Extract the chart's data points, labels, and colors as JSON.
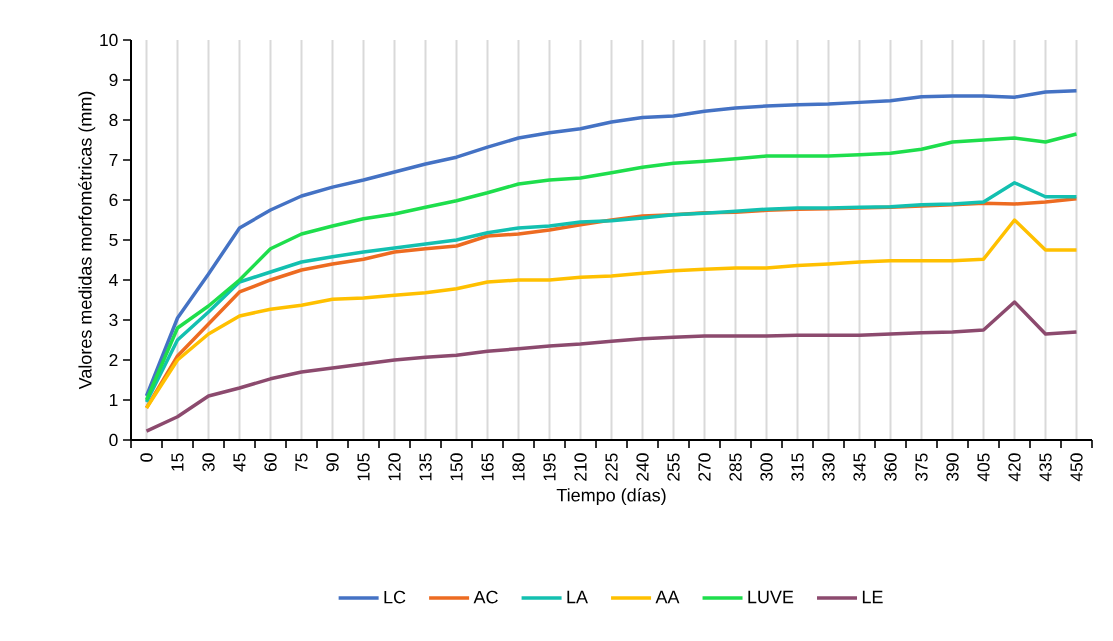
{
  "chart_data": {
    "type": "line",
    "xlabel": "Tiempo (días)",
    "ylabel": "Valores medidas morfométricas (mm)",
    "categories": [
      "0",
      "15",
      "30",
      "45",
      "60",
      "75",
      "90",
      "105",
      "120",
      "135",
      "150",
      "165",
      "180",
      "195",
      "210",
      "225",
      "240",
      "255",
      "270",
      "285",
      "300",
      "315",
      "330",
      "345",
      "360",
      "375",
      "390",
      "405",
      "420",
      "435",
      "450"
    ],
    "ylim": [
      0,
      10
    ],
    "yticks": [
      0,
      1,
      2,
      3,
      4,
      5,
      6,
      7,
      8,
      9,
      10
    ],
    "grid": "x",
    "legend": "bottom",
    "marker": "none",
    "line_style": "solid",
    "series": [
      {
        "name": "LC",
        "color": "#4472c4",
        "values": [
          1.1,
          3.05,
          4.15,
          5.3,
          5.75,
          6.1,
          6.32,
          6.5,
          6.7,
          6.9,
          7.07,
          7.32,
          7.55,
          7.68,
          7.78,
          7.95,
          8.06,
          8.1,
          8.22,
          8.3,
          8.35,
          8.38,
          8.4,
          8.44,
          8.48,
          8.58,
          8.6,
          8.6,
          8.57,
          8.7,
          8.73
        ]
      },
      {
        "name": "AC",
        "color": "#ed6b21",
        "values": [
          0.8,
          2.1,
          2.9,
          3.7,
          4.0,
          4.25,
          4.4,
          4.52,
          4.7,
          4.78,
          4.85,
          5.1,
          5.15,
          5.25,
          5.38,
          5.5,
          5.6,
          5.63,
          5.68,
          5.69,
          5.74,
          5.77,
          5.78,
          5.8,
          5.82,
          5.85,
          5.88,
          5.92,
          5.9,
          5.95,
          6.03
        ]
      },
      {
        "name": "LA",
        "color": "#13c0b0",
        "values": [
          0.95,
          2.5,
          3.2,
          3.95,
          4.2,
          4.45,
          4.58,
          4.7,
          4.8,
          4.9,
          5.0,
          5.18,
          5.3,
          5.35,
          5.45,
          5.48,
          5.55,
          5.63,
          5.67,
          5.72,
          5.77,
          5.8,
          5.8,
          5.82,
          5.83,
          5.88,
          5.9,
          5.95,
          6.43,
          6.08,
          6.08
        ]
      },
      {
        "name": "AA",
        "color": "#ffc000",
        "values": [
          0.8,
          2.0,
          2.65,
          3.1,
          3.27,
          3.37,
          3.52,
          3.55,
          3.62,
          3.68,
          3.78,
          3.95,
          4.0,
          4.0,
          4.07,
          4.1,
          4.17,
          4.23,
          4.27,
          4.3,
          4.3,
          4.36,
          4.4,
          4.45,
          4.48,
          4.48,
          4.48,
          4.52,
          5.5,
          4.75,
          4.75
        ]
      },
      {
        "name": "LUVE",
        "color": "#1ede4c",
        "values": [
          1.0,
          2.8,
          3.35,
          4.0,
          4.78,
          5.15,
          5.35,
          5.53,
          5.65,
          5.82,
          5.98,
          6.18,
          6.4,
          6.5,
          6.55,
          6.68,
          6.82,
          6.92,
          6.97,
          7.03,
          7.1,
          7.1,
          7.1,
          7.13,
          7.17,
          7.27,
          7.45,
          7.5,
          7.55,
          7.45,
          7.65
        ]
      },
      {
        "name": "LE",
        "color": "#8c4a6e",
        "values": [
          0.22,
          0.58,
          1.1,
          1.3,
          1.53,
          1.7,
          1.8,
          1.9,
          2.0,
          2.07,
          2.12,
          2.22,
          2.28,
          2.35,
          2.4,
          2.47,
          2.53,
          2.57,
          2.6,
          2.6,
          2.6,
          2.62,
          2.62,
          2.62,
          2.65,
          2.68,
          2.7,
          2.75,
          3.45,
          2.65,
          2.7
        ]
      }
    ]
  }
}
